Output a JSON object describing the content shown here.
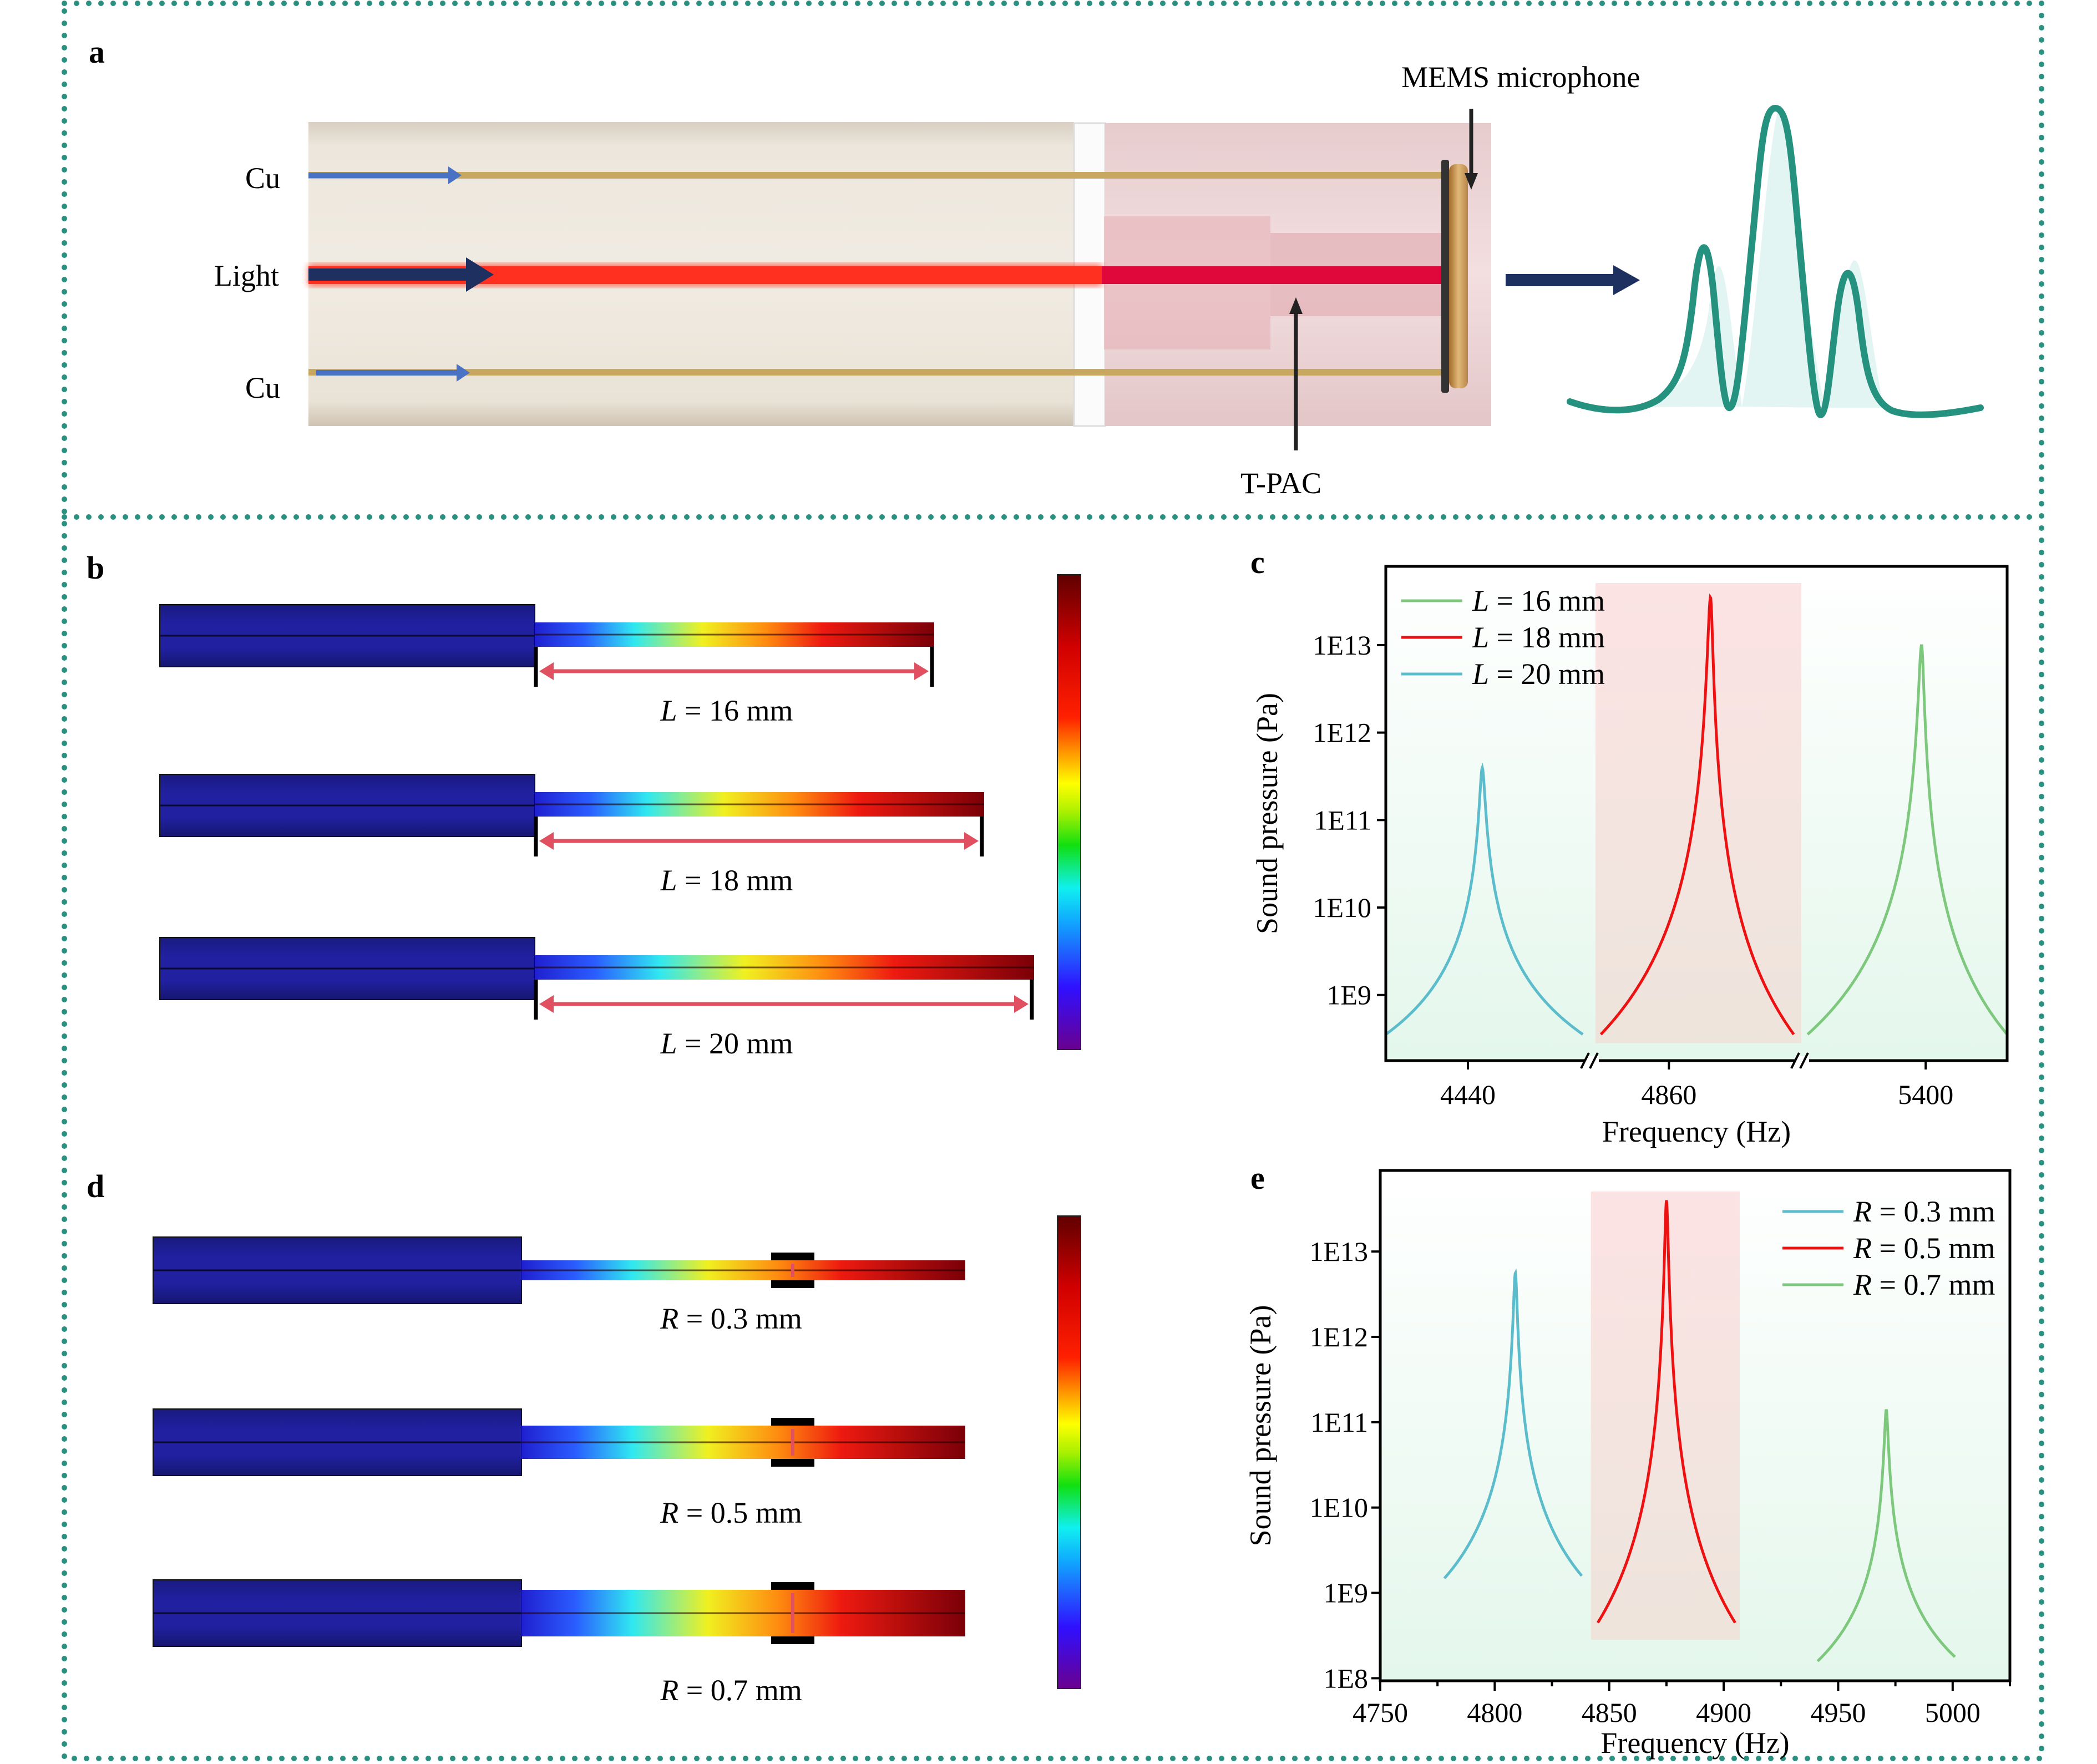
{
  "panel_labels": {
    "a": "a",
    "b": "b",
    "c": "c",
    "d": "d",
    "e": "e"
  },
  "colors": {
    "border_dots": "#2a9080",
    "cu_arrow": "#4a72c4",
    "light_beam": "#ff3020",
    "dark_arrow": "#1e3060",
    "spectrum_line": "#25917f",
    "spectrum_fill": "#e2f5f3",
    "series_green": "#7ec87e",
    "series_red": "#ee1111",
    "series_cyan": "#5bbccc",
    "highlight_band": "#f7d6d6",
    "plot_bg_top": "#ffffff",
    "plot_bg_bottom": "#e6f7ee",
    "dimension_arrow": "#e05060",
    "geometry_blue": "#1e1e8c"
  },
  "panel_a": {
    "labels": {
      "cu_top": "Cu",
      "light": "Light",
      "cu_bottom": "Cu",
      "mems": "MEMS microphone",
      "tpac": "T-PAC"
    }
  },
  "panel_b": {
    "items": [
      {
        "symbol": "L",
        "text": " = 16 mm",
        "length_mm": 16
      },
      {
        "symbol": "L",
        "text": " = 18 mm",
        "length_mm": 18
      },
      {
        "symbol": "L",
        "text": " = 20 mm",
        "length_mm": 20
      }
    ]
  },
  "panel_d": {
    "items": [
      {
        "symbol": "R",
        "text": " = 0.3 mm",
        "radius_mm": 0.3
      },
      {
        "symbol": "R",
        "text": " = 0.5 mm",
        "radius_mm": 0.5
      },
      {
        "symbol": "R",
        "text": " = 0.7 mm",
        "radius_mm": 0.7
      }
    ]
  },
  "chart_data": [
    {
      "id": "c",
      "type": "line",
      "title": "",
      "xlabel": "Frequency (Hz)",
      "ylabel": "Sound pressure (Pa)",
      "yscale": "log",
      "ylim_log10": [
        8.25,
        13.9
      ],
      "yticks": [
        {
          "value_log10": 9,
          "label": "1E9"
        },
        {
          "value_log10": 10,
          "label": "1E10"
        },
        {
          "value_log10": 11,
          "label": "1E11"
        },
        {
          "value_log10": 12,
          "label": "1E12"
        },
        {
          "value_log10": 13,
          "label": "1E13"
        }
      ],
      "broken_x_axis": true,
      "x_segments": [
        {
          "range": [
            4400,
            4500
          ],
          "tick": 4440
        },
        {
          "range": [
            4820,
            4930
          ],
          "tick": 4860
        },
        {
          "range": [
            5340,
            5440
          ],
          "tick": 5400
        }
      ],
      "xtick_labels": [
        "4440",
        "4860",
        "5400"
      ],
      "highlight_segment": 1,
      "legend": {
        "position": "top-left"
      },
      "series": [
        {
          "name": "L = 16 mm",
          "symbol": "L",
          "suffix": " = 16 mm",
          "color_key": "series_green",
          "segment": 2,
          "peak_freq": 5398,
          "peak_log10": 13.0,
          "edge_log10": 8.55,
          "x_start": 5342,
          "x_end": 5440
        },
        {
          "name": "L = 18 mm",
          "symbol": "L",
          "suffix": " = 18 mm",
          "color_key": "series_red",
          "segment": 1,
          "peak_freq": 4882,
          "peak_log10": 13.55,
          "edge_log10": 8.55,
          "x_start": 4824,
          "x_end": 4926
        },
        {
          "name": "L = 20 mm",
          "symbol": "L",
          "suffix": " = 20 mm",
          "color_key": "series_cyan",
          "segment": 0,
          "peak_freq": 4447,
          "peak_log10": 11.6,
          "edge_log10": 8.55,
          "x_start": 4400,
          "x_end": 4496
        }
      ]
    },
    {
      "id": "e",
      "type": "line",
      "title": "",
      "xlabel": "Frequency (Hz)",
      "ylabel": "Sound pressure (Pa)",
      "yscale": "log",
      "xlim": [
        4750,
        5025
      ],
      "ylim_log10": [
        7.97,
        13.95
      ],
      "xticks": [
        4750,
        4800,
        4850,
        4900,
        4950,
        5000
      ],
      "xtick_labels": [
        "4750",
        "4800",
        "4850",
        "4900",
        "4950",
        "5000"
      ],
      "yticks": [
        {
          "value_log10": 8,
          "label": "1E8"
        },
        {
          "value_log10": 9,
          "label": "1E9"
        },
        {
          "value_log10": 10,
          "label": "1E10"
        },
        {
          "value_log10": 11,
          "label": "1E11"
        },
        {
          "value_log10": 12,
          "label": "1E12"
        },
        {
          "value_log10": 13,
          "label": "1E13"
        }
      ],
      "highlight_range": [
        4842,
        4907
      ],
      "legend": {
        "position": "top-right"
      },
      "series": [
        {
          "name": "R = 0.3 mm",
          "symbol": "R",
          "suffix": " = 0.3 mm",
          "color_key": "series_cyan",
          "peak_freq": 4809,
          "peak_log10": 12.75,
          "edge_log10_left": 9.17,
          "edge_log10_right": 9.2,
          "x_start": 4778,
          "x_end": 4838
        },
        {
          "name": "R = 0.5 mm",
          "symbol": "R",
          "suffix": " = 0.5 mm",
          "color_key": "series_red",
          "peak_freq": 4875,
          "peak_log10": 13.6,
          "edge_log10_left": 8.65,
          "edge_log10_right": 8.65,
          "x_start": 4845,
          "x_end": 4905
        },
        {
          "name": "R = 0.7 mm",
          "symbol": "R",
          "suffix": " = 0.7 mm",
          "color_key": "series_green",
          "peak_freq": 4971,
          "peak_log10": 11.15,
          "edge_log10_left": 8.2,
          "edge_log10_right": 8.25,
          "x_start": 4941,
          "x_end": 5001
        }
      ]
    }
  ]
}
